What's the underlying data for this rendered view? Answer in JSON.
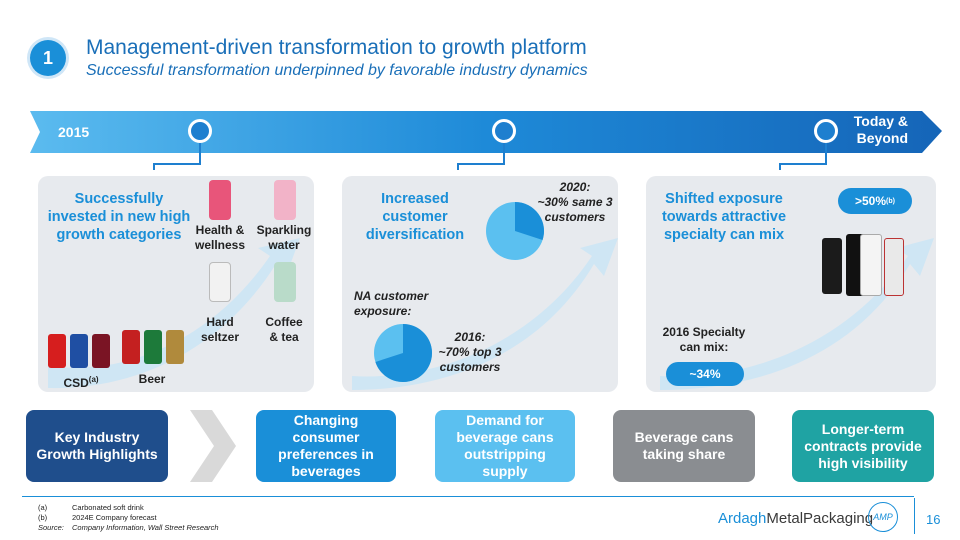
{
  "header": {
    "number": "1",
    "title": "Management-driven transformation to growth platform",
    "subtitle": "Successful transformation underpinned by favorable industry dynamics"
  },
  "timeline": {
    "start_label": "2015",
    "end_label_line1": "Today &",
    "end_label_line2": "Beyond"
  },
  "panel1": {
    "title_line1": "Successfully",
    "title_line2": "invested in new high",
    "title_line3": "growth categories",
    "health_line1": "Health &",
    "health_line2": "wellness",
    "sparkling_line1": "Sparkling",
    "sparkling_line2": "water",
    "seltzer_line1": "Hard",
    "seltzer_line2": "seltzer",
    "coffee_line1": "Coffee",
    "coffee_line2": "& tea",
    "csd_label": "CSD",
    "csd_sup": "(a)",
    "beer_label": "Beer"
  },
  "panel2": {
    "title_line1": "Increased",
    "title_line2": "customer",
    "title_line3": "diversification",
    "y2020_line1": "2020:",
    "y2020_line2": "~30% same 3",
    "y2020_line3": "customers",
    "na_line1": "NA customer",
    "na_line2": "exposure:",
    "y2016_line1": "2016:",
    "y2016_line2": "~70% top 3",
    "y2016_line3": "customers"
  },
  "panel3": {
    "title_line1": "Shifted exposure",
    "title_line2": "towards attractive",
    "title_line3": "specialty can mix",
    "badge_value": ">50%",
    "badge_sup": "(b)",
    "mix_line1": "2016 Specialty",
    "mix_line2": "can mix:",
    "mix_value": "~34%"
  },
  "bottom": {
    "key_line1": "Key Industry",
    "key_line2": "Growth Highlights",
    "b1_line1": "Changing",
    "b1_line2": "consumer",
    "b1_line3": "preferences in",
    "b1_line4": "beverages",
    "b2_line1": "Demand for",
    "b2_line2": "beverage cans",
    "b2_line3": "outstripping",
    "b2_line4": "supply",
    "b3_line1": "Beverage cans",
    "b3_line2": "taking share",
    "b4_line1": "Longer-term",
    "b4_line2": "contracts provide",
    "b4_line3": "high visibility"
  },
  "footnotes": {
    "a_mark": "(a)",
    "a_text": "Carbonated soft drink",
    "b_mark": "(b)",
    "b_text": "2024E Company forecast",
    "source_mark": "Source:",
    "source_text": "Company Information, Wall Street Research"
  },
  "brand": {
    "logo_part1": "Ardagh",
    "logo_part2": "MetalPackaging",
    "logo_mark": "AMP",
    "page_number": "16"
  },
  "charts": {
    "pie_2020_share": 30,
    "pie_2016_share": 70
  },
  "colors": {
    "accent_blue": "#1a8fd8",
    "light_blue": "#5bc0f0",
    "grey": "#8a8d91",
    "teal": "#1fa3a3",
    "navy": "#1f4e8c"
  }
}
